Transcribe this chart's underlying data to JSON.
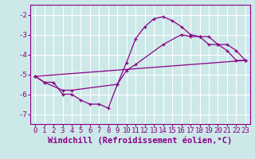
{
  "background_color": "#cde8e8",
  "grid_color": "#b0d8d8",
  "line_color": "#880088",
  "marker_color": "#880088",
  "xlabel": "Windchill (Refroidissement éolien,°C)",
  "xlim": [
    -0.5,
    23.5
  ],
  "ylim": [
    -7.5,
    -1.5
  ],
  "yticks": [
    -7,
    -6,
    -5,
    -4,
    -3,
    -2
  ],
  "xticks": [
    0,
    1,
    2,
    3,
    4,
    5,
    6,
    7,
    8,
    9,
    10,
    11,
    12,
    13,
    14,
    15,
    16,
    17,
    18,
    19,
    20,
    21,
    22,
    23
  ],
  "curve1_x": [
    0,
    1,
    2,
    3,
    4,
    5,
    6,
    7,
    8,
    9,
    10,
    11,
    12,
    13,
    14,
    15,
    16,
    17,
    18,
    19,
    20,
    21,
    22,
    23
  ],
  "curve1_y": [
    -5.1,
    -5.4,
    -5.4,
    -6.0,
    -6.0,
    -6.3,
    -6.5,
    -6.5,
    -6.7,
    -5.5,
    -4.4,
    -3.2,
    -2.6,
    -2.2,
    -2.1,
    -2.3,
    -2.6,
    -3.0,
    -3.1,
    -3.5,
    -3.5,
    -3.8,
    -4.3,
    -4.3
  ],
  "curve2_x": [
    0,
    1,
    3,
    4,
    9,
    10,
    11,
    14,
    16,
    17,
    18,
    19,
    20,
    21,
    22,
    23
  ],
  "curve2_y": [
    -5.1,
    -5.4,
    -5.8,
    -5.8,
    -5.5,
    -4.8,
    -4.5,
    -3.5,
    -3.0,
    -3.1,
    -3.1,
    -3.1,
    -3.5,
    -3.5,
    -3.8,
    -4.3
  ],
  "curve3_x": [
    0,
    23
  ],
  "curve3_y": [
    -5.1,
    -4.3
  ],
  "font_family": "monospace",
  "tick_fontsize": 6.5,
  "label_fontsize": 7.5
}
